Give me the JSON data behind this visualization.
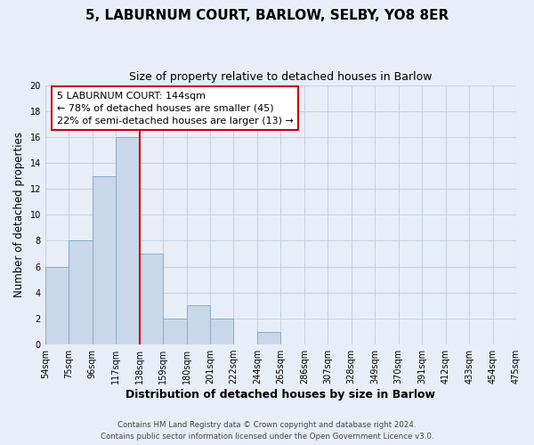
{
  "title": "5, LABURNUM COURT, BARLOW, SELBY, YO8 8ER",
  "subtitle": "Size of property relative to detached houses in Barlow",
  "xlabel": "Distribution of detached houses by size in Barlow",
  "ylabel": "Number of detached properties",
  "bar_color": "#c8d8ea",
  "bar_edge_color": "#8aaac8",
  "bins_labels": [
    "54sqm",
    "75sqm",
    "96sqm",
    "117sqm",
    "138sqm",
    "159sqm",
    "180sqm",
    "201sqm",
    "222sqm",
    "244sqm",
    "265sqm",
    "286sqm",
    "307sqm",
    "328sqm",
    "349sqm",
    "370sqm",
    "391sqm",
    "412sqm",
    "433sqm",
    "454sqm",
    "475sqm"
  ],
  "counts": [
    6,
    8,
    13,
    16,
    7,
    2,
    3,
    2,
    0,
    1,
    0,
    0,
    0,
    0,
    0,
    0,
    0,
    0,
    0,
    0
  ],
  "ylim": [
    0,
    20
  ],
  "yticks": [
    0,
    2,
    4,
    6,
    8,
    10,
    12,
    14,
    16,
    18,
    20
  ],
  "vline_bin_index": 4,
  "vline_color": "#cc0000",
  "annotation_title": "5 LABURNUM COURT: 144sqm",
  "annotation_line1": "← 78% of detached houses are smaller (45)",
  "annotation_line2": "22% of semi-detached houses are larger (13) →",
  "annotation_box_color": "#ffffff",
  "annotation_box_edge": "#cc0000",
  "grid_color": "#c8d4e4",
  "bg_color": "#e8eef8",
  "footer1": "Contains HM Land Registry data © Crown copyright and database right 2024.",
  "footer2": "Contains public sector information licensed under the Open Government Licence v3.0."
}
